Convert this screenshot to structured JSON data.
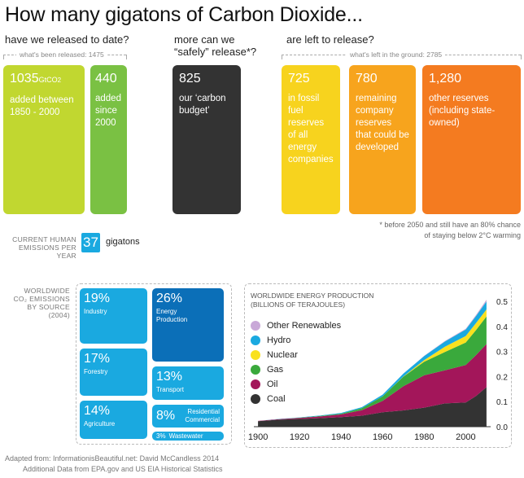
{
  "title": "How many gigatons of Carbon Dioxide...",
  "questions": {
    "q1": "have we released to date?",
    "q2": "more can we “safely” release*?",
    "q3": "are left to release?"
  },
  "brackets": {
    "released": "what's been released: 1475",
    "left": "what's left in the ground: 2785"
  },
  "boxes": [
    {
      "id": "b1",
      "value": "1035",
      "unit": "GtCO2",
      "desc": "added between 1850 - 2000",
      "color": "#c1d730"
    },
    {
      "id": "b2",
      "value": "440",
      "desc": "added since 2000",
      "color": "#7ac143"
    },
    {
      "id": "b3",
      "value": "825",
      "desc": "our ‘carbon budget’",
      "color": "#333333"
    },
    {
      "id": "b4",
      "value": "725",
      "desc": "in fossil fuel reserves of all energy companies",
      "color": "#f7d31e"
    },
    {
      "id": "b5",
      "value": "780",
      "desc": "remaining company reserves that could be developed",
      "color": "#f7a41d"
    },
    {
      "id": "b6",
      "value": "1,280",
      "desc": "other reserves (including state-owned)",
      "color": "#f47b20"
    }
  ],
  "footnote": {
    "line1": "* before 2050 and still have an 80% chance",
    "line2": "of staying below 2°C warming"
  },
  "current": {
    "label1": "CURRENT HUMAN",
    "label2": "EMISSIONS PER YEAR",
    "value": "37",
    "unit": "gigatons"
  },
  "sources": {
    "label1": "WORLDWIDE",
    "label2": "CO₂ EMISSIONS",
    "label3": "BY SOURCE",
    "label4": "(2004)",
    "tiles": [
      {
        "id": "industry",
        "pct": "19%",
        "label": "Industry",
        "color": "#1aa9e0"
      },
      {
        "id": "forestry",
        "pct": "17%",
        "label": "Forestry",
        "color": "#1aa9e0"
      },
      {
        "id": "agriculture",
        "pct": "14%",
        "label": "Agriculture",
        "color": "#1aa9e0"
      },
      {
        "id": "energy",
        "pct": "26%",
        "label": "Energy Production",
        "color": "#0b6fb8"
      },
      {
        "id": "transport",
        "pct": "13%",
        "label": "Transport",
        "color": "#1aa9e0"
      },
      {
        "id": "residential",
        "pct": "8%",
        "label": "Residential Commercial",
        "color": "#1aa9e0"
      },
      {
        "id": "wastewater",
        "pct": "3%",
        "label": "Wastewater",
        "color": "#1aa9e0"
      }
    ]
  },
  "credits": {
    "line1": "Adapted from: InformationisBeautiful.net: David McCandless 2014",
    "line2": "Additional Data from EPA.gov and US EIA Historical Statistics"
  },
  "chart_data": {
    "type": "area",
    "title": "WORLDWIDE ENERGY PRODUCTION",
    "subtitle": "(BILLIONS OF TERAJOULES)",
    "x": [
      1900,
      1910,
      1920,
      1930,
      1940,
      1950,
      1960,
      1970,
      1980,
      1990,
      2000,
      2005,
      2010
    ],
    "xticks": [
      1900,
      1920,
      1940,
      1960,
      1980,
      2000
    ],
    "yticks": [
      0.0,
      0.1,
      0.2,
      0.3,
      0.4,
      0.5
    ],
    "ylim": [
      0,
      0.52
    ],
    "series": [
      {
        "name": "Coal",
        "color": "#333333",
        "values": [
          0.022,
          0.028,
          0.031,
          0.034,
          0.038,
          0.044,
          0.058,
          0.065,
          0.076,
          0.093,
          0.097,
          0.123,
          0.158
        ]
      },
      {
        "name": "Oil",
        "color": "#a3165a",
        "values": [
          0.001,
          0.002,
          0.004,
          0.007,
          0.011,
          0.022,
          0.045,
          0.097,
          0.129,
          0.132,
          0.149,
          0.163,
          0.172
        ]
      },
      {
        "name": "Gas",
        "color": "#3aa93c",
        "values": [
          0.0,
          0.0,
          0.001,
          0.002,
          0.003,
          0.008,
          0.018,
          0.038,
          0.054,
          0.073,
          0.09,
          0.1,
          0.11
        ]
      },
      {
        "name": "Nuclear",
        "color": "#f9e11e",
        "values": [
          0.0,
          0.0,
          0.0,
          0.0,
          0.0,
          0.0,
          0.0,
          0.001,
          0.007,
          0.021,
          0.026,
          0.028,
          0.028
        ]
      },
      {
        "name": "Hydro",
        "color": "#1aa9e0",
        "values": [
          0.0,
          0.001,
          0.001,
          0.002,
          0.003,
          0.004,
          0.007,
          0.011,
          0.016,
          0.021,
          0.026,
          0.028,
          0.032
        ]
      },
      {
        "name": "Other Renewables",
        "color": "#c9a8d8",
        "values": [
          0.0,
          0.0,
          0.0,
          0.0,
          0.0,
          0.0,
          0.0,
          0.0,
          0.001,
          0.002,
          0.003,
          0.004,
          0.007
        ]
      }
    ]
  }
}
